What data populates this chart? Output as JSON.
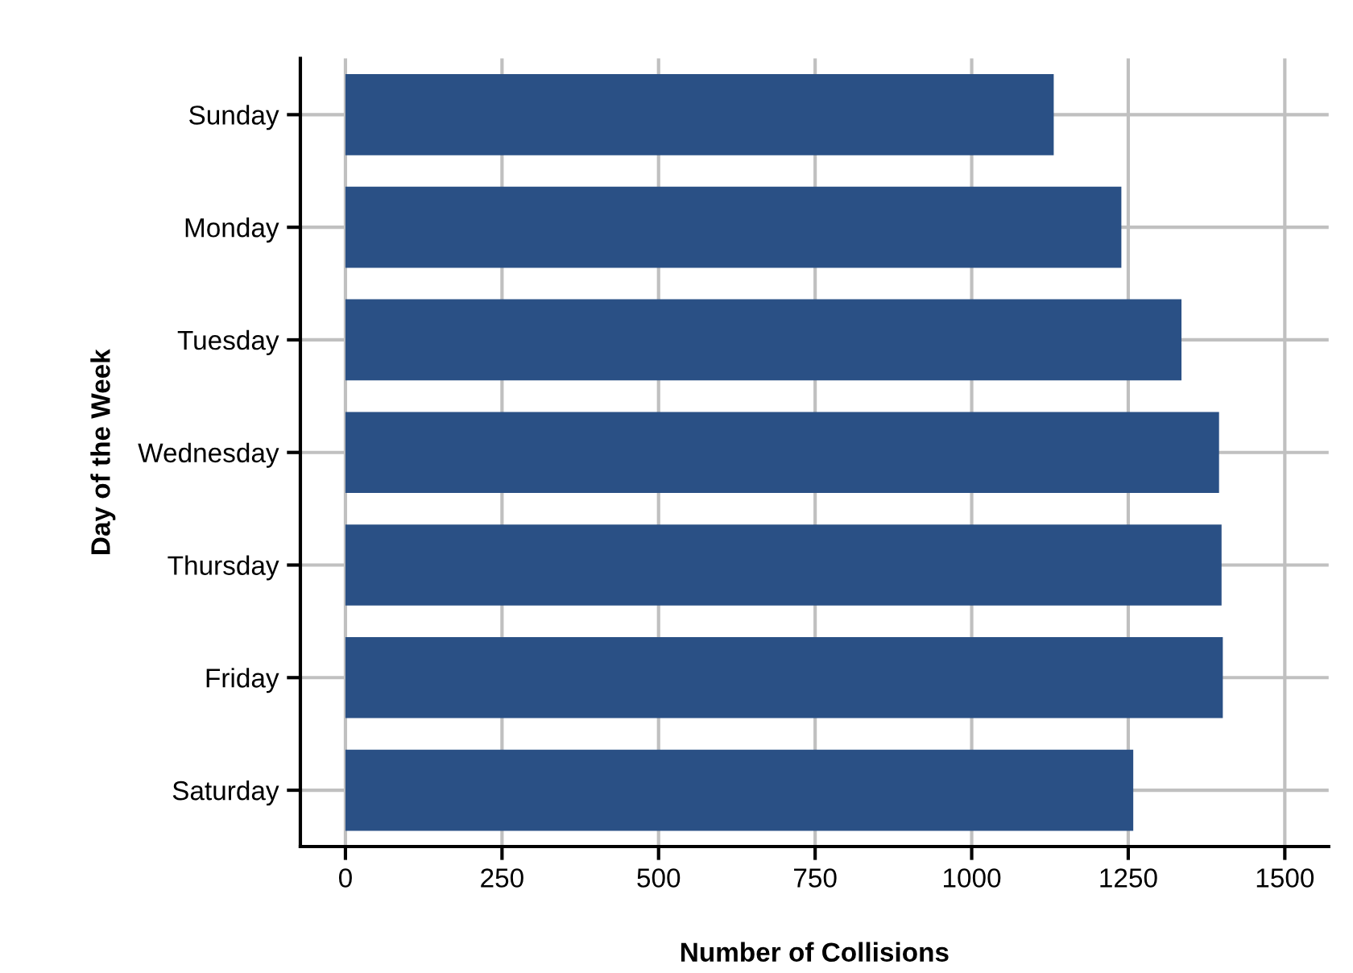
{
  "chart_data": {
    "type": "bar",
    "orientation": "horizontal",
    "xlabel": "Number of Collisions",
    "ylabel": "Day of the Week",
    "categories": [
      "Sunday",
      "Monday",
      "Tuesday",
      "Wednesday",
      "Thursday",
      "Friday",
      "Saturday"
    ],
    "values": [
      1131,
      1239,
      1335,
      1395,
      1399,
      1401,
      1258
    ],
    "color": "#2a5085",
    "xlim": [
      -72,
      1570
    ],
    "xticks": [
      0,
      250,
      500,
      750,
      1000,
      1250,
      1500
    ],
    "grid": true
  }
}
